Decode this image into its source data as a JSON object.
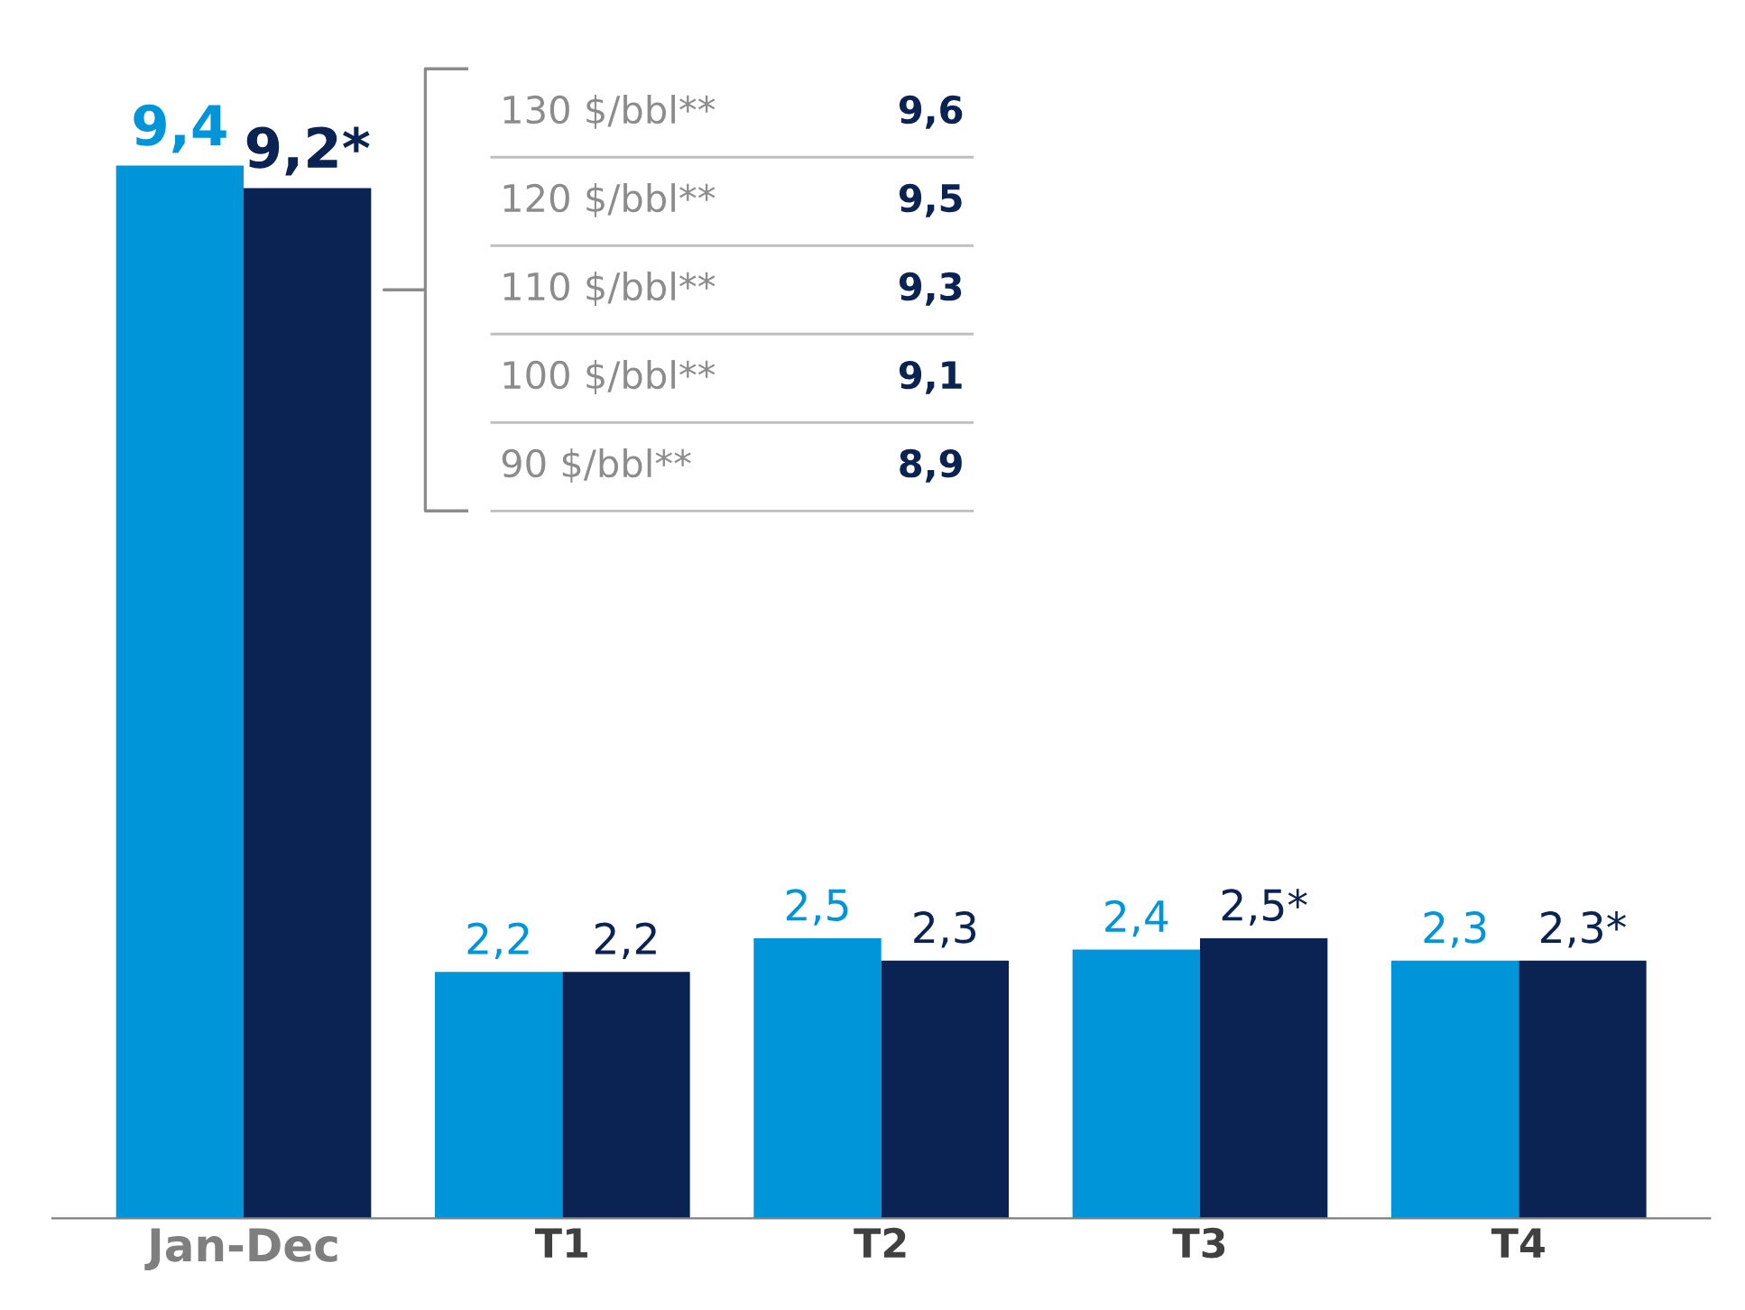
{
  "chart_data": {
    "type": "bar",
    "categories": [
      "Jan-Dec",
      "T1",
      "T2",
      "T3",
      "T4"
    ],
    "series": [
      {
        "color": "#0095d9",
        "values": [
          9.4,
          2.2,
          2.5,
          2.4,
          2.3
        ],
        "value_labels": [
          "9,4",
          "2,2",
          "2,5",
          "2,4",
          "2,3"
        ]
      },
      {
        "color": "#0a2352",
        "values": [
          9.2,
          2.2,
          2.3,
          2.5,
          2.3
        ],
        "value_labels": [
          "9,2*",
          "2,2",
          "2,3",
          "2,5*",
          "2,3*"
        ]
      }
    ],
    "tick_labels": "x",
    "grid": false,
    "annotations": [
      "130 $/bbl**",
      "9,6",
      "120 $/bbl**",
      "9,5",
      "110 $/bbl**",
      "9,3",
      "100 $/bbl**",
      "9,1",
      "90 $/bbl**",
      "8,9"
    ]
  }
}
